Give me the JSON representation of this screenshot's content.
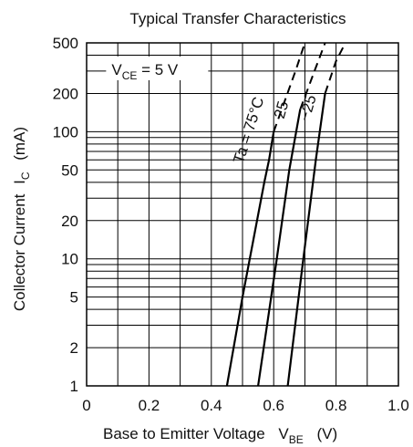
{
  "chart_data": {
    "type": "line",
    "title": "Typical Transfer Characteristics",
    "xlabel": {
      "main": "Base to Emitter Voltage",
      "symbol": "V",
      "sub": "BE",
      "unit": "(V)"
    },
    "ylabel": {
      "main": "Collector Current",
      "symbol": "I",
      "sub": "C",
      "unit": "(mA)"
    },
    "xlim": [
      0,
      1.0
    ],
    "ylim": [
      1,
      500
    ],
    "yscale": "log",
    "x_ticks": [
      "0",
      "0.2",
      "0.4",
      "0.6",
      "0.8",
      "1.0"
    ],
    "y_ticks": [
      "1",
      "2",
      "5",
      "10",
      "20",
      "50",
      "100",
      "200",
      "500"
    ],
    "grid": true,
    "condition": {
      "symbol": "V",
      "sub": "CE",
      "rest": " = 5 V"
    },
    "series": [
      {
        "name": "Ta = 75°C",
        "solid": [
          [
            0.45,
            1
          ],
          [
            0.5,
            5
          ],
          [
            0.57,
            40
          ],
          [
            0.585,
            60
          ],
          [
            0.6,
            100
          ]
        ],
        "dashed": [
          [
            0.6,
            100
          ],
          [
            0.67,
            300
          ],
          [
            0.7,
            500
          ]
        ]
      },
      {
        "name": "25",
        "solid": [
          [
            0.55,
            1
          ],
          [
            0.61,
            10
          ],
          [
            0.65,
            50
          ],
          [
            0.685,
            150
          ]
        ],
        "dashed": [
          [
            0.685,
            150
          ],
          [
            0.735,
            320
          ],
          [
            0.765,
            500
          ]
        ]
      },
      {
        "name": "−25",
        "solid": [
          [
            0.645,
            1
          ],
          [
            0.695,
            10
          ],
          [
            0.735,
            60
          ],
          [
            0.765,
            200
          ]
        ],
        "dashed": [
          [
            0.765,
            200
          ],
          [
            0.8,
            360
          ],
          [
            0.83,
            500
          ]
        ]
      }
    ]
  }
}
